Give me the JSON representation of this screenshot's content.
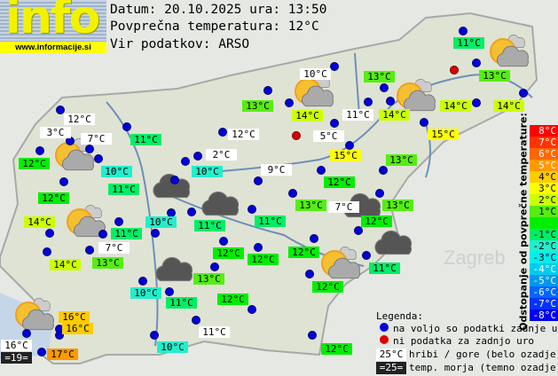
{
  "logo": {
    "text": "info",
    "url": "www.informacije.si"
  },
  "header": {
    "date_line": "Datum: 20.10.2025 ura: 13:50",
    "avg_line": "Povprečna temperatura: 12°C",
    "source_line": "Vir podatkov: ARSO"
  },
  "colors": {
    "8": "#ff0000",
    "7": "#ff3300",
    "6": "#ff6600",
    "5": "#ff9900",
    "4": "#ffcc00",
    "3": "#ffff00",
    "2": "#ccff00",
    "1": "#55ee11",
    "0": "#00ee00",
    "-1": "#00ee66",
    "-2": "#22eecc",
    "-3": "#00eeee",
    "-4": "#00ccee",
    "-5": "#0099ee",
    "-6": "#0066ff",
    "-7": "#0033ff",
    "-8": "#0000ee",
    "mountain": "#ffffff",
    "sea": "#222222"
  },
  "labels": [
    {
      "t": "12°C",
      "c": "mountain"
    },
    {
      "t": "3°C",
      "c": "mountain"
    },
    {
      "t": "7°C",
      "c": "mountain"
    },
    {
      "t": "11°C",
      "c": "-1"
    },
    {
      "t": "12°C",
      "c": "0"
    },
    {
      "t": "10°C",
      "c": "-2"
    },
    {
      "t": "13°C",
      "c": "1"
    },
    {
      "t": "12°C",
      "c": "mountain"
    },
    {
      "t": "2°C",
      "c": "mountain"
    },
    {
      "t": "10°C",
      "c": "-2"
    },
    {
      "t": "9°C",
      "c": "mountain"
    },
    {
      "t": "11°C",
      "c": "-1"
    },
    {
      "t": "12°C",
      "c": "0"
    },
    {
      "t": "14°C",
      "c": "2"
    },
    {
      "t": "11°C",
      "c": "-1"
    },
    {
      "t": "10°C",
      "c": "-2"
    },
    {
      "t": "11°C",
      "c": "-1"
    },
    {
      "t": "11°C",
      "c": "-1"
    },
    {
      "t": "7°C",
      "c": "mountain"
    },
    {
      "t": "14°C",
      "c": "2"
    },
    {
      "t": "13°C",
      "c": "1"
    },
    {
      "t": "12°C",
      "c": "0"
    },
    {
      "t": "12°C",
      "c": "0"
    },
    {
      "t": "13°C",
      "c": "1"
    },
    {
      "t": "10°C",
      "c": "-2"
    },
    {
      "t": "11°C",
      "c": "-1"
    },
    {
      "t": "12°C",
      "c": "0"
    },
    {
      "t": "16°C",
      "c": "4"
    },
    {
      "t": "16°C",
      "c": "4"
    },
    {
      "t": "16°C",
      "c": "mountain"
    },
    {
      "t": "=19=",
      "c": "sea"
    },
    {
      "t": "17°C",
      "c": "5"
    },
    {
      "t": "10°C",
      "c": "-2"
    },
    {
      "t": "11°C",
      "c": "mountain"
    },
    {
      "t": "11°C",
      "c": "-1"
    },
    {
      "t": "10°C",
      "c": "mountain"
    },
    {
      "t": "13°C",
      "c": "1"
    },
    {
      "t": "13°C",
      "c": "1"
    },
    {
      "t": "14°C",
      "c": "2"
    },
    {
      "t": "11°C",
      "c": "mountain"
    },
    {
      "t": "14°C",
      "c": "2"
    },
    {
      "t": "14°C",
      "c": "2"
    },
    {
      "t": "14°C",
      "c": "2"
    },
    {
      "t": "5°C",
      "c": "mountain"
    },
    {
      "t": "15°C",
      "c": "3"
    },
    {
      "t": "15°C",
      "c": "3"
    },
    {
      "t": "13°C",
      "c": "1"
    },
    {
      "t": "12°C",
      "c": "0"
    },
    {
      "t": "13°C",
      "c": "1"
    },
    {
      "t": "7°C",
      "c": "mountain"
    },
    {
      "t": "13°C",
      "c": "1"
    },
    {
      "t": "12°C",
      "c": "0"
    },
    {
      "t": "12°C",
      "c": "0"
    },
    {
      "t": "11°C",
      "c": "-1"
    },
    {
      "t": "12°C",
      "c": "0"
    },
    {
      "t": "12°C",
      "c": "0"
    }
  ],
  "stations": [
    "ok",
    "ok",
    "ok",
    "ok",
    "ok",
    "ok",
    "ok",
    "ok",
    "ok",
    "ok",
    "ok",
    "ok",
    "ok",
    "ok",
    "ok",
    "ok",
    "ok",
    "ok",
    "ok",
    "ok",
    "ok",
    "ok",
    "ok",
    "ok",
    "ok",
    "ok",
    "ok",
    "ok",
    "ok",
    "ok",
    "ok",
    "ok",
    "missing",
    "ok",
    "ok",
    "ok",
    "ok",
    "ok",
    "ok",
    "ok",
    "ok",
    "missing",
    "ok",
    "ok",
    "ok",
    "ok",
    "ok",
    "ok",
    "ok",
    "ok",
    "ok",
    "ok",
    "ok",
    "ok",
    "ok",
    "ok",
    "ok"
  ],
  "weather_icons": [
    "sun-cloud",
    "sun-cloud",
    "sun-cloud",
    "sun-cloud",
    "sun-cloud",
    "sun-cloud",
    "sun-cloud",
    "cloud",
    "cloud",
    "cloud",
    "cloud",
    "cloud"
  ],
  "scale": {
    "title": "Odstopanje od povprečne temperature:",
    "steps": [
      {
        "t": "8°C",
        "c": "8"
      },
      {
        "t": "7°C",
        "c": "7"
      },
      {
        "t": "6°C",
        "c": "6"
      },
      {
        "t": "5°C",
        "c": "5"
      },
      {
        "t": "4°C",
        "c": "4"
      },
      {
        "t": "3°C",
        "c": "3"
      },
      {
        "t": "2°C",
        "c": "2"
      },
      {
        "t": "1°C",
        "c": "1"
      },
      {
        "t": "",
        "c": "0"
      },
      {
        "t": "-1°C",
        "c": "-1"
      },
      {
        "t": "-2°C",
        "c": "-2"
      },
      {
        "t": "-3°C",
        "c": "-3"
      },
      {
        "t": "-4°C",
        "c": "-4"
      },
      {
        "t": "-5°C",
        "c": "-5"
      },
      {
        "t": "-6°C",
        "c": "-6"
      },
      {
        "t": "-7°C",
        "c": "-7"
      },
      {
        "t": "-8°C",
        "c": "-8"
      }
    ]
  },
  "legend": {
    "title": "Legenda:",
    "available": "na voljo so podatki zadnje ure",
    "missing": "ni podatka za zadnjo uro",
    "mountain_chip": "25°C",
    "mountain_text": "hribi / gore (belo ozadje)",
    "sea_chip": "=25=",
    "sea_text": "temp. morja (temno ozadje)"
  },
  "map_text": {
    "zagreb": "Zagreb"
  }
}
